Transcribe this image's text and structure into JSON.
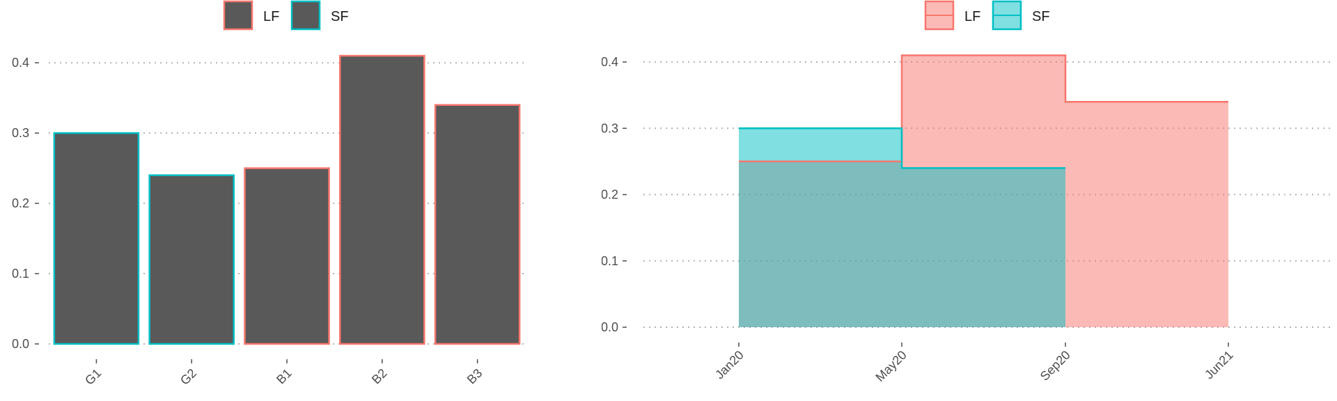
{
  "chart_data": [
    {
      "type": "bar",
      "categories": [
        "G1",
        "G2",
        "B1",
        "B2",
        "B3"
      ],
      "values": [
        0.3,
        0.24,
        0.25,
        0.41,
        0.34
      ],
      "outline_group": [
        "SF",
        "SF",
        "LF",
        "LF",
        "LF"
      ],
      "legend": [
        {
          "name": "LF",
          "color": "#F8766D"
        },
        {
          "name": "SF",
          "color": "#00BFC4"
        }
      ],
      "bar_fill": "#595959",
      "ylim": [
        0,
        0.42
      ],
      "yticks": [
        0.0,
        0.1,
        0.2,
        0.3,
        0.4
      ],
      "ytick_labels": [
        "0.0",
        "0.1",
        "0.2",
        "0.3",
        "0.4"
      ],
      "grid": "horizontal dotted",
      "legend_position": "top"
    },
    {
      "type": "area",
      "step": true,
      "x_ticks": [
        "Jan20",
        "May20",
        "Sep20",
        "Jun21"
      ],
      "series": [
        {
          "name": "LF",
          "color": "#F8766D",
          "x": [
            "Jan20",
            "May20",
            "Sep20",
            "Jun21"
          ],
          "values": [
            0.25,
            0.41,
            0.34,
            0.34
          ]
        },
        {
          "name": "SF",
          "color": "#00BFC4",
          "x": [
            "Jan20",
            "May20",
            "Sep20"
          ],
          "values": [
            0.3,
            0.24,
            0.24
          ]
        }
      ],
      "ylim": [
        0,
        0.42
      ],
      "yticks": [
        0.0,
        0.1,
        0.2,
        0.3,
        0.4
      ],
      "ytick_labels": [
        "0.0",
        "0.1",
        "0.2",
        "0.3",
        "0.4"
      ],
      "grid": "horizontal dotted",
      "legend_position": "top"
    }
  ]
}
